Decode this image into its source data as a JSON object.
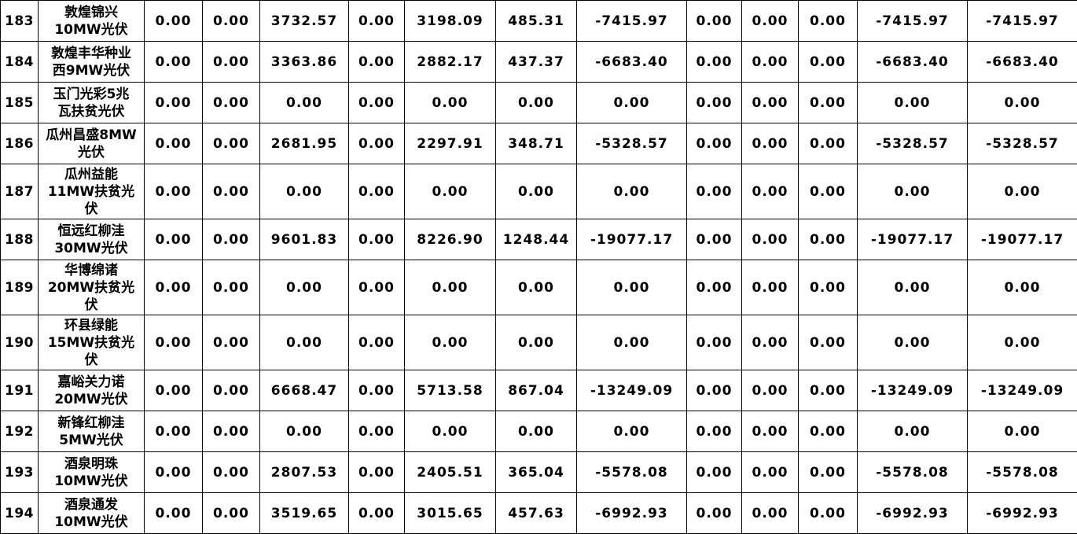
{
  "table": {
    "rows": [
      {
        "no": "183",
        "name": "敦煌锦兴\n10MW光伏",
        "tall": false,
        "values": [
          "0.00",
          "0.00",
          "3732.57",
          "0.00",
          "3198.09",
          "485.31",
          "-7415.97",
          "0.00",
          "0.00",
          "0.00",
          "-7415.97",
          "-7415.97"
        ]
      },
      {
        "no": "184",
        "name": "敦煌丰华种业\n西9MW光伏",
        "tall": false,
        "values": [
          "0.00",
          "0.00",
          "3363.86",
          "0.00",
          "2882.17",
          "437.37",
          "-6683.40",
          "0.00",
          "0.00",
          "0.00",
          "-6683.40",
          "-6683.40"
        ]
      },
      {
        "no": "185",
        "name": "玉门光彩5兆\n瓦扶贫光伏",
        "tall": false,
        "values": [
          "0.00",
          "0.00",
          "0.00",
          "0.00",
          "0.00",
          "0.00",
          "0.00",
          "0.00",
          "0.00",
          "0.00",
          "0.00",
          "0.00"
        ]
      },
      {
        "no": "186",
        "name": "瓜州昌盛8MW\n光伏",
        "tall": false,
        "values": [
          "0.00",
          "0.00",
          "2681.95",
          "0.00",
          "2297.91",
          "348.71",
          "-5328.57",
          "0.00",
          "0.00",
          "0.00",
          "-5328.57",
          "-5328.57"
        ]
      },
      {
        "no": "187",
        "name": "瓜州益能\n11MW扶贫光\n伏",
        "tall": true,
        "values": [
          "0.00",
          "0.00",
          "0.00",
          "0.00",
          "0.00",
          "0.00",
          "0.00",
          "0.00",
          "0.00",
          "0.00",
          "0.00",
          "0.00"
        ]
      },
      {
        "no": "188",
        "name": "恒远红柳洼\n30MW光伏",
        "tall": false,
        "values": [
          "0.00",
          "0.00",
          "9601.83",
          "0.00",
          "8226.90",
          "1248.44",
          "-19077.17",
          "0.00",
          "0.00",
          "0.00",
          "-19077.17",
          "-19077.17"
        ]
      },
      {
        "no": "189",
        "name": "华博绵诸\n20MW扶贫光\n伏",
        "tall": true,
        "values": [
          "0.00",
          "0.00",
          "0.00",
          "0.00",
          "0.00",
          "0.00",
          "0.00",
          "0.00",
          "0.00",
          "0.00",
          "0.00",
          "0.00"
        ]
      },
      {
        "no": "190",
        "name": "环县绿能\n15MW扶贫光\n伏",
        "tall": true,
        "values": [
          "0.00",
          "0.00",
          "0.00",
          "0.00",
          "0.00",
          "0.00",
          "0.00",
          "0.00",
          "0.00",
          "0.00",
          "0.00",
          "0.00"
        ]
      },
      {
        "no": "191",
        "name": "嘉峪关力诺\n20MW光伏",
        "tall": false,
        "values": [
          "0.00",
          "0.00",
          "6668.47",
          "0.00",
          "5713.58",
          "867.04",
          "-13249.09",
          "0.00",
          "0.00",
          "0.00",
          "-13249.09",
          "-13249.09"
        ]
      },
      {
        "no": "192",
        "name": "新锋红柳洼\n5MW光伏",
        "tall": false,
        "values": [
          "0.00",
          "0.00",
          "0.00",
          "0.00",
          "0.00",
          "0.00",
          "0.00",
          "0.00",
          "0.00",
          "0.00",
          "0.00",
          "0.00"
        ]
      },
      {
        "no": "193",
        "name": "酒泉明珠\n10MW光伏",
        "tall": false,
        "values": [
          "0.00",
          "0.00",
          "2807.53",
          "0.00",
          "2405.51",
          "365.04",
          "-5578.08",
          "0.00",
          "0.00",
          "0.00",
          "-5578.08",
          "-5578.08"
        ]
      },
      {
        "no": "194",
        "name": "酒泉通发\n10MW光伏",
        "tall": false,
        "values": [
          "0.00",
          "0.00",
          "3519.65",
          "0.00",
          "3015.65",
          "457.63",
          "-6992.93",
          "0.00",
          "0.00",
          "0.00",
          "-6992.93",
          "-6992.93"
        ]
      }
    ],
    "colors": {
      "grid_line": "#000000",
      "text": "#000000",
      "background": "#ffffff"
    }
  }
}
